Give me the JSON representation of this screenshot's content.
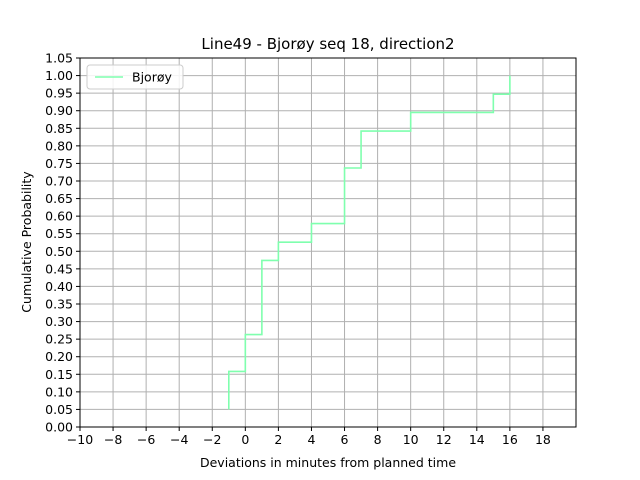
{
  "chart_data": {
    "type": "line",
    "drawstyle": "steps-post",
    "title": "Line49 - Bjorøy seq 18, direction2",
    "xlabel": "Deviations in minutes from planned time",
    "ylabel": "Cumulative Probability",
    "xlim": [
      -10,
      20
    ],
    "ylim": [
      0,
      1.05
    ],
    "xticks": [
      -10,
      -8,
      -6,
      -4,
      -2,
      0,
      2,
      4,
      6,
      8,
      10,
      12,
      14,
      16,
      18
    ],
    "xtick_labels": [
      "−10",
      "−8",
      "−6",
      "−4",
      "−2",
      "0",
      "2",
      "4",
      "6",
      "8",
      "10",
      "12",
      "14",
      "16",
      "18"
    ],
    "yticks": [
      0.0,
      0.05,
      0.1,
      0.15,
      0.2,
      0.25,
      0.3,
      0.35,
      0.4,
      0.45,
      0.5,
      0.55,
      0.6,
      0.65,
      0.7,
      0.75,
      0.8,
      0.85,
      0.9,
      0.95,
      1.0,
      1.05
    ],
    "ytick_labels": [
      "0.00",
      "0.05",
      "0.10",
      "0.15",
      "0.20",
      "0.25",
      "0.30",
      "0.35",
      "0.40",
      "0.45",
      "0.50",
      "0.55",
      "0.60",
      "0.65",
      "0.70",
      "0.75",
      "0.80",
      "0.85",
      "0.90",
      "0.95",
      "1.00",
      "1.05"
    ],
    "grid": true,
    "legend": {
      "position": "top-left",
      "entries": [
        "Bjorøy"
      ]
    },
    "series": [
      {
        "name": "Bjorøy",
        "color": "#7fffae",
        "x": [
          -1,
          -1,
          0,
          0,
          1,
          1,
          2,
          2,
          4,
          4,
          6,
          6,
          7,
          7,
          10,
          10,
          15,
          15,
          16,
          16
        ],
        "y": [
          0.05,
          0.158,
          0.158,
          0.263,
          0.263,
          0.474,
          0.474,
          0.526,
          0.526,
          0.579,
          0.579,
          0.737,
          0.737,
          0.842,
          0.842,
          0.895,
          0.895,
          0.947,
          0.947,
          1.0
        ]
      }
    ]
  }
}
